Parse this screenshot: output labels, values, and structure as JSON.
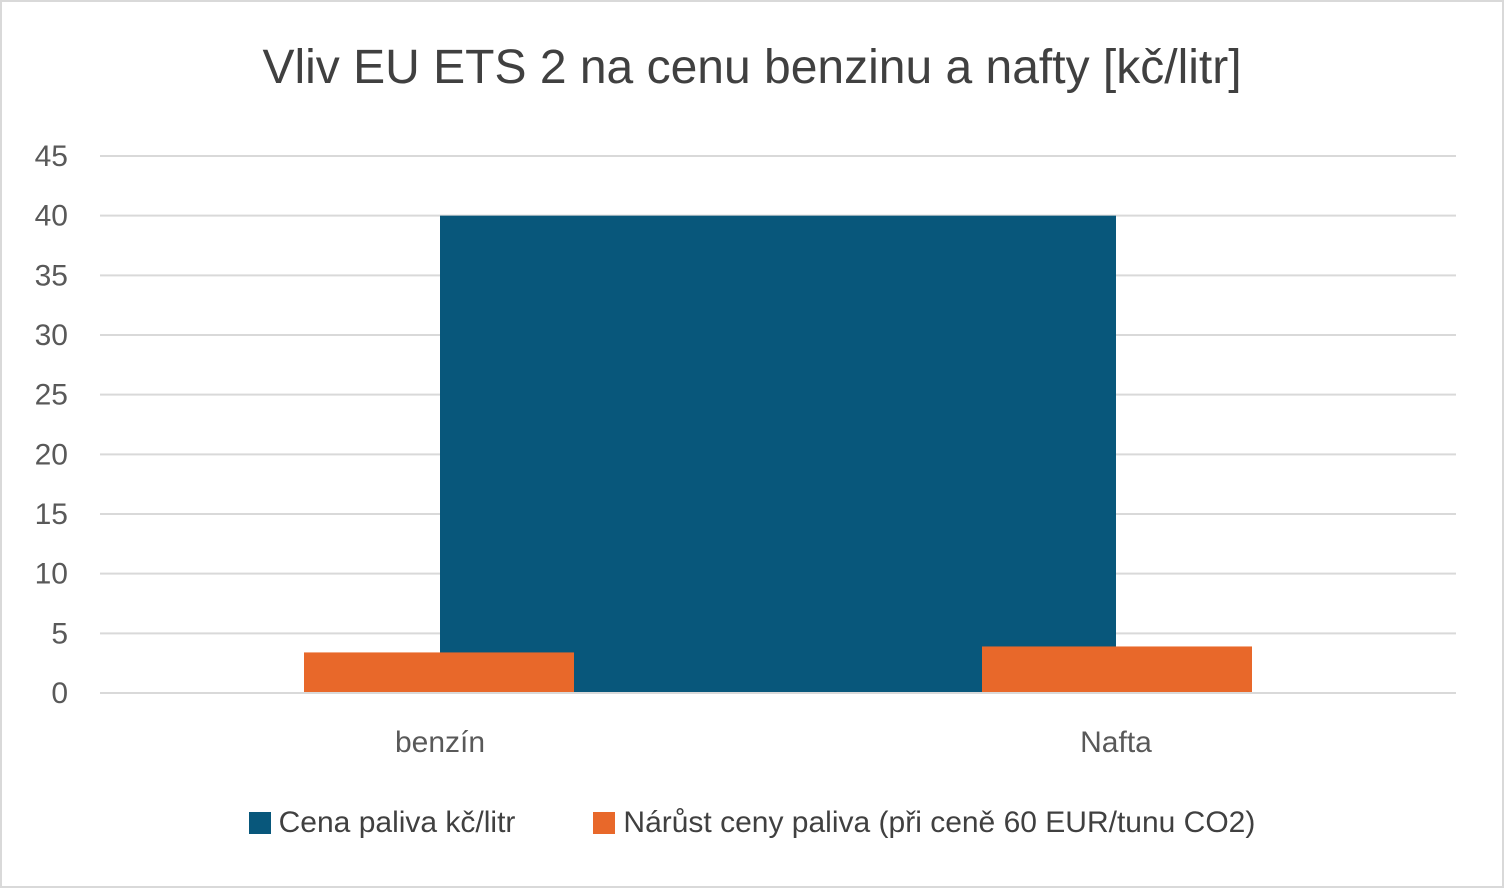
{
  "chart_data": {
    "type": "bar",
    "title": "Vliv EU ETS 2 na cenu benzinu a nafty [kč/litr]",
    "xlabel": "",
    "ylabel": "",
    "categories": [
      "benzín",
      "Nafta"
    ],
    "series": [
      {
        "name": "Cena paliva kč/litr",
        "values": [
          40,
          40
        ],
        "color": "#08577B"
      },
      {
        "name": "Nárůst ceny paliva (při ceně 60 EUR/tunu CO2)",
        "values": [
          3.4,
          3.9
        ],
        "color": "#E8682A"
      }
    ],
    "ylim": [
      0,
      45
    ],
    "yticks": [
      "0",
      "5",
      "10",
      "15",
      "20",
      "25",
      "30",
      "35",
      "40",
      "45"
    ],
    "grid": true,
    "legend_position": "bottom"
  }
}
